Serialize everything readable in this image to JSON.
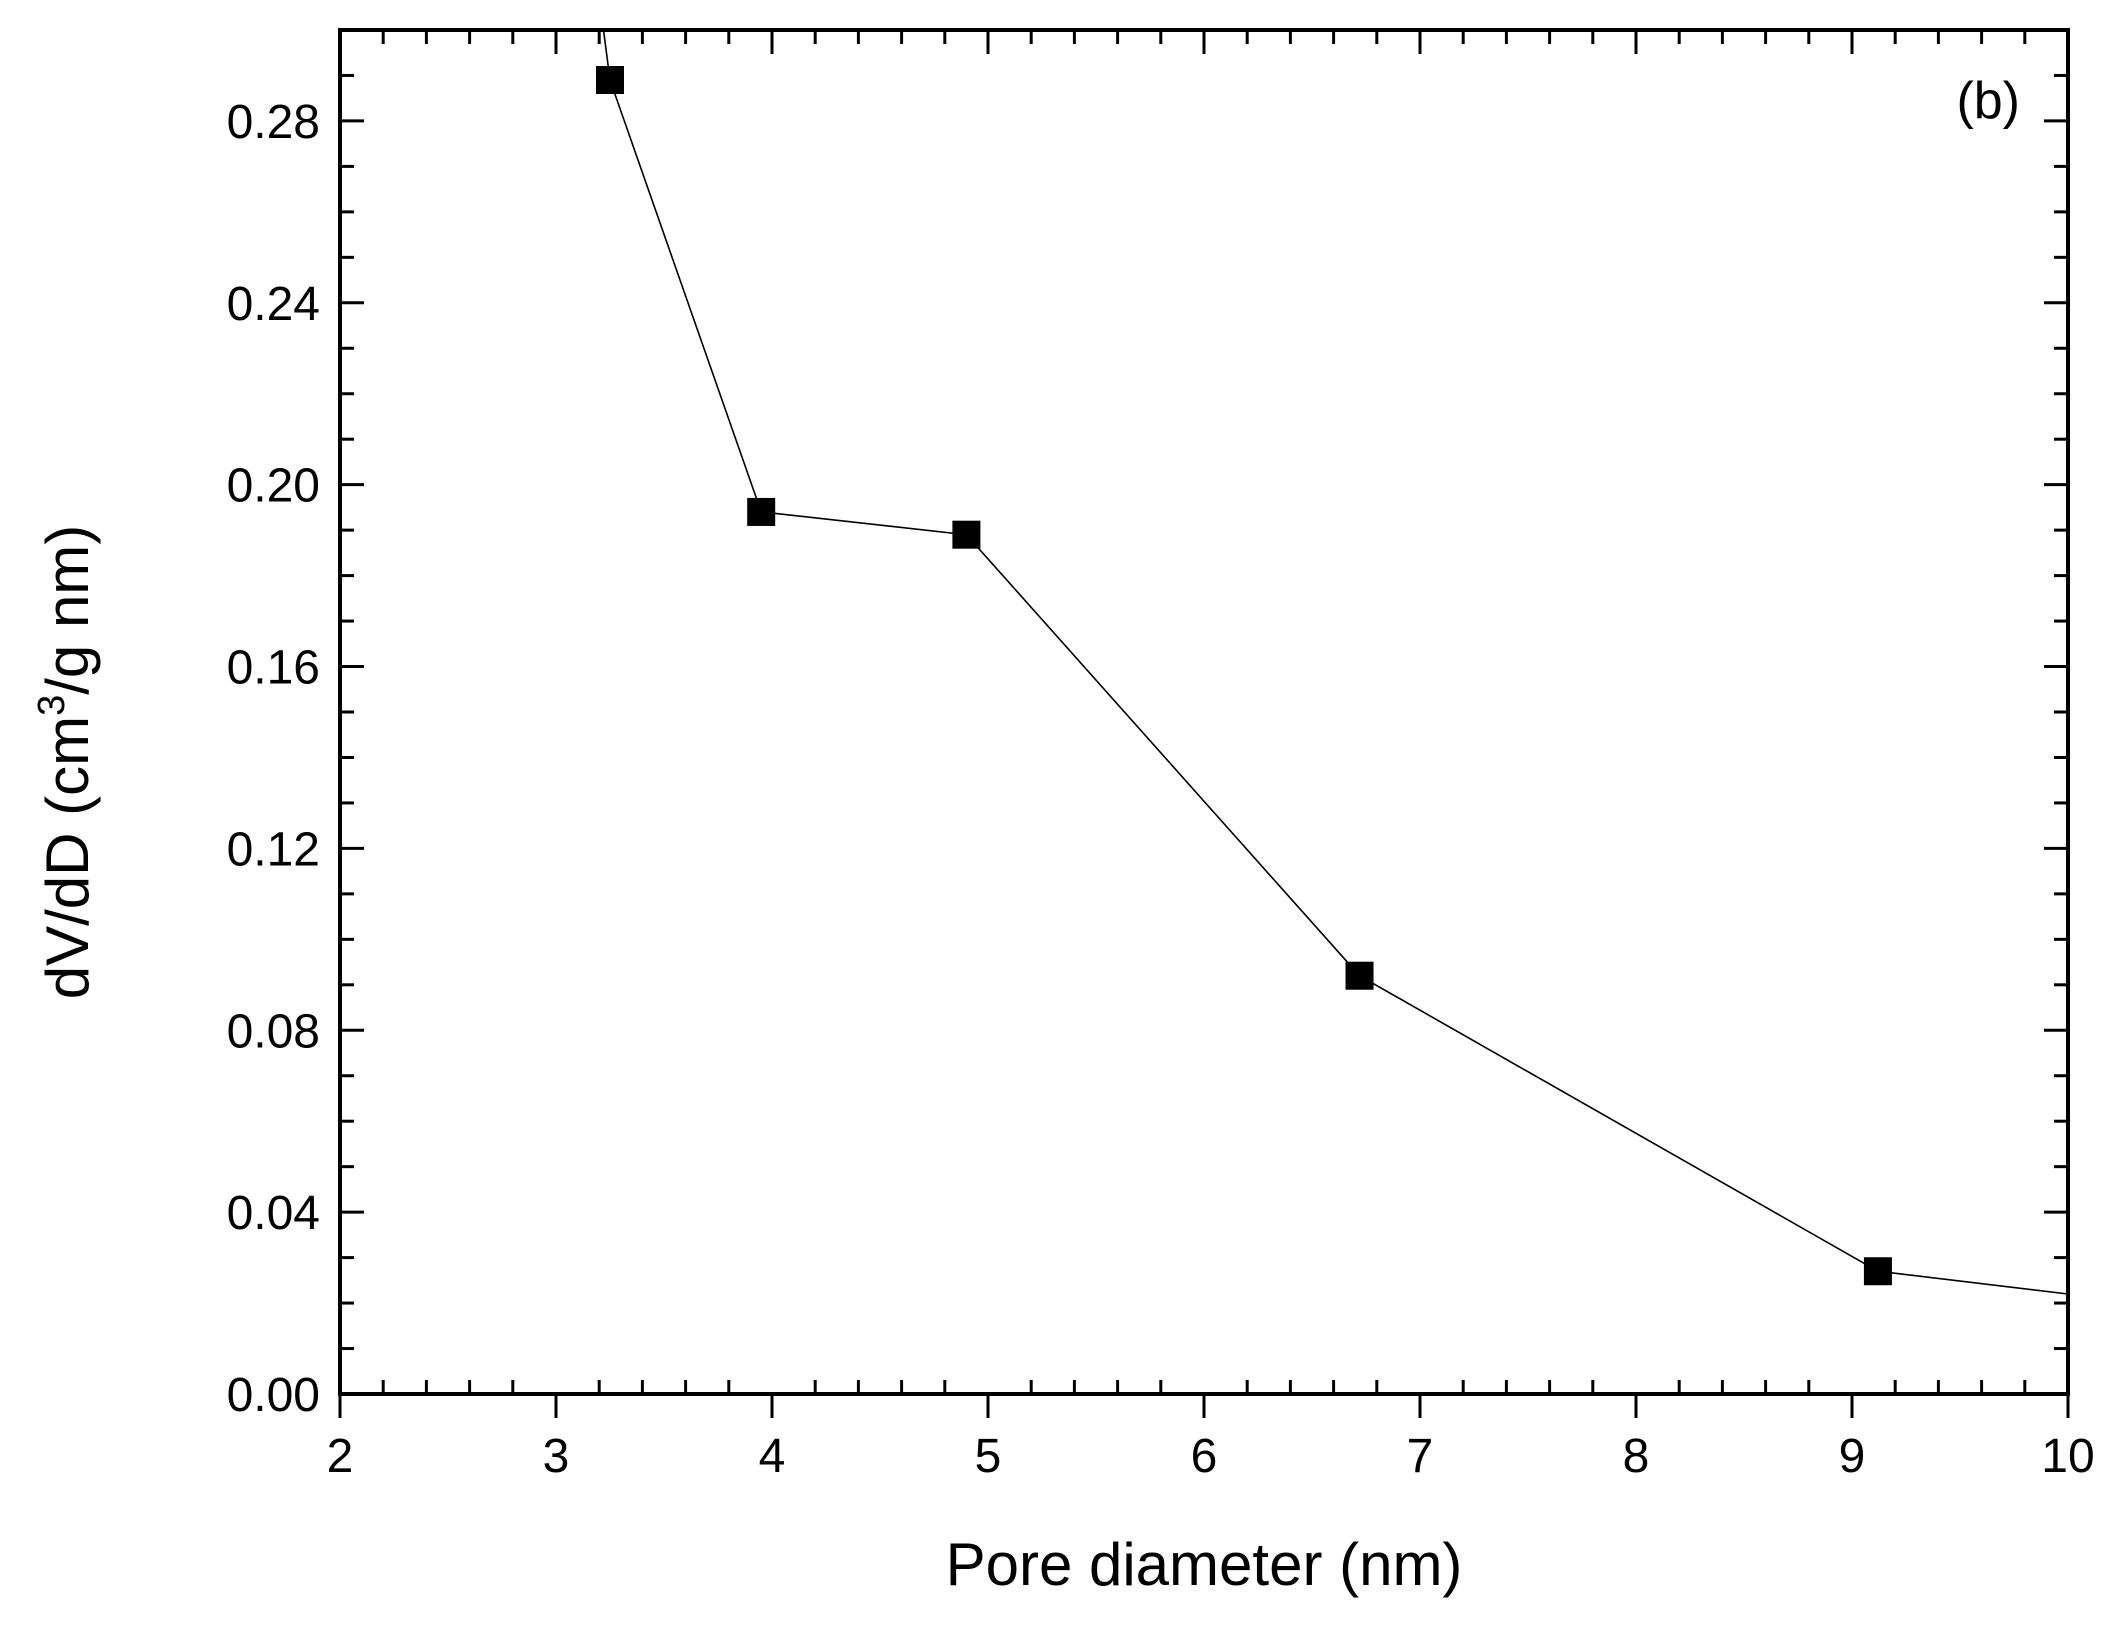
{
  "chart_data": {
    "type": "line",
    "panel_label": "(b)",
    "xlabel": "Pore diameter (nm)",
    "ylabel": {
      "main": "dV/dD (cm",
      "superscript": "3",
      "tail": "/g nm)"
    },
    "xlim": [
      2,
      10
    ],
    "ylim": [
      0.0,
      0.3
    ],
    "xticks": [
      2,
      3,
      4,
      5,
      6,
      7,
      8,
      9,
      10
    ],
    "xtick_labels": [
      "2",
      "3",
      "4",
      "5",
      "6",
      "7",
      "8",
      "9",
      "10"
    ],
    "yticks": [
      0.0,
      0.04,
      0.08,
      0.12,
      0.16,
      0.2,
      0.24,
      0.28
    ],
    "ytick_labels": [
      "0.00",
      "0.04",
      "0.08",
      "0.12",
      "0.16",
      "0.20",
      "0.24",
      "0.28"
    ],
    "grid": false,
    "series": [
      {
        "marker": "square",
        "color": "#000000",
        "line_start": [
          3.22,
          0.302
        ],
        "line_end": [
          10.0,
          0.022
        ],
        "points": [
          {
            "x": 3.25,
            "y": 0.289
          },
          {
            "x": 3.95,
            "y": 0.194
          },
          {
            "x": 4.9,
            "y": 0.189
          },
          {
            "x": 6.72,
            "y": 0.092
          },
          {
            "x": 9.12,
            "y": 0.027
          }
        ]
      }
    ]
  }
}
